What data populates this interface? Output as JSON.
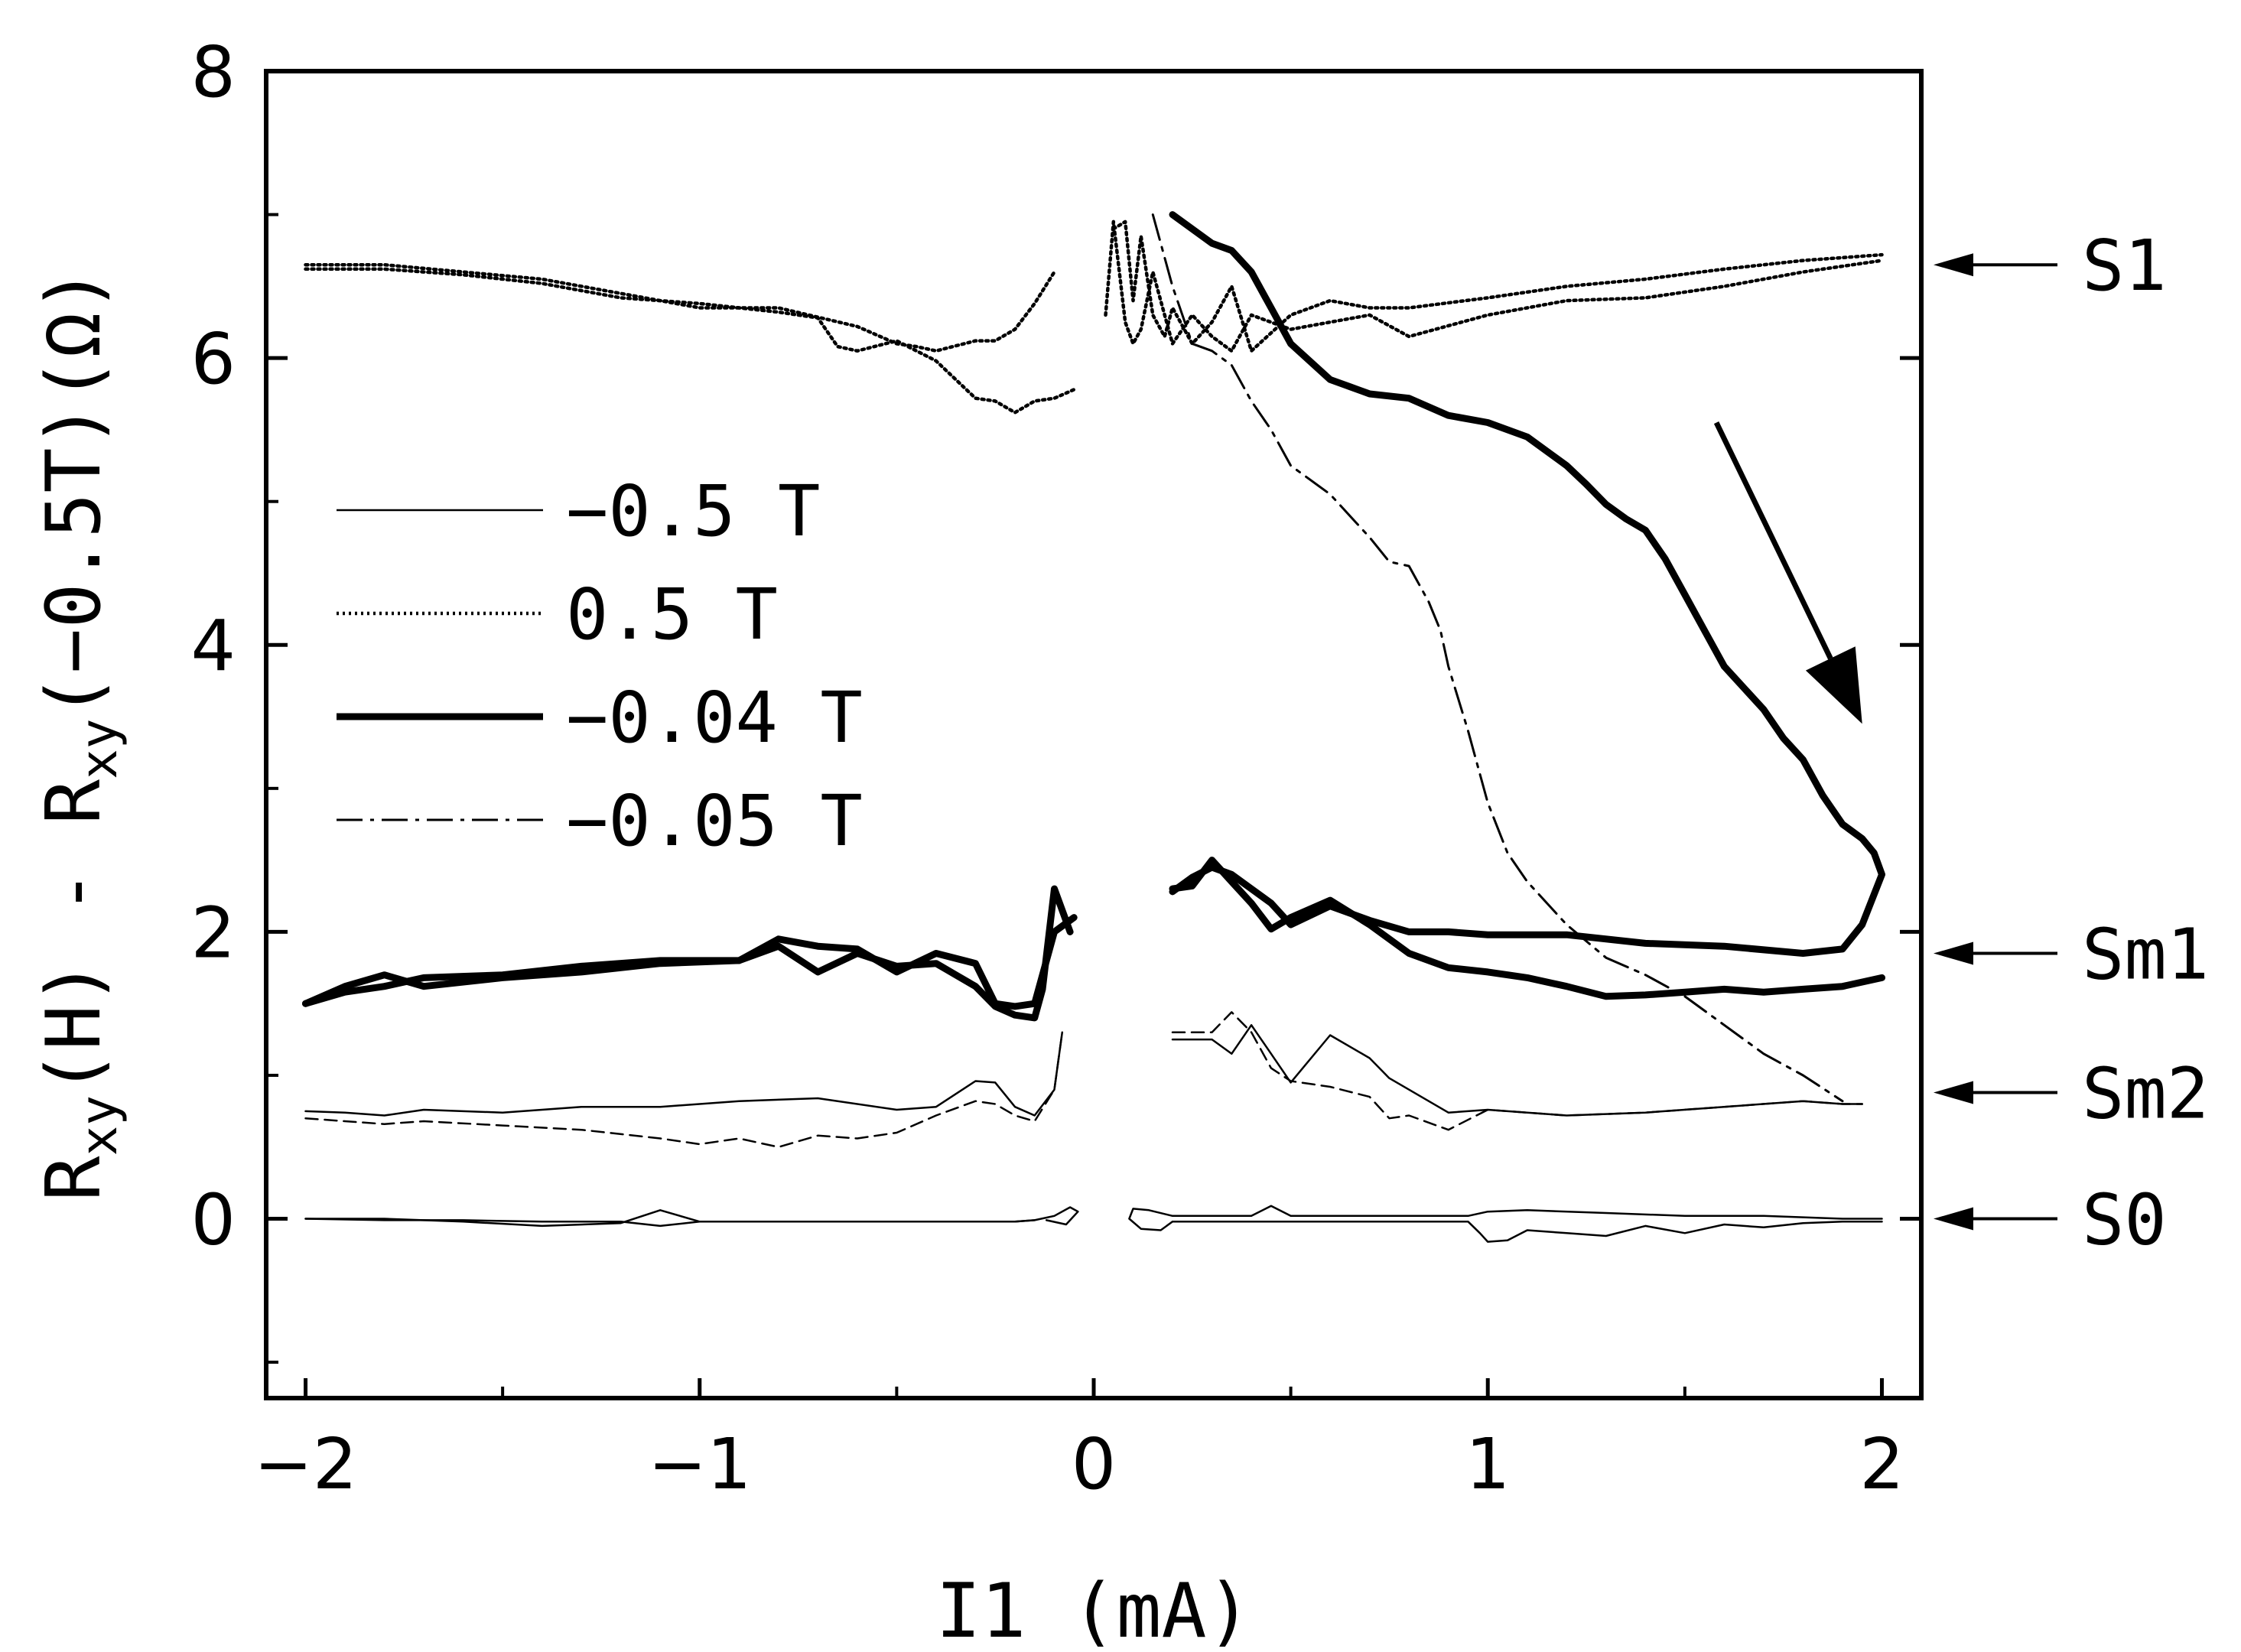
{
  "chart_data": {
    "type": "line",
    "xlabel": "I1 (mA)",
    "ylabel": {
      "main": "R",
      "sub1": "xy",
      "mid": "(H) - R",
      "sub2": "xy",
      "tail": "(−0.5T)(Ω)"
    },
    "xlim": [
      -2.1,
      2.1
    ],
    "ylim": [
      -1.25,
      8
    ],
    "x_ticks": [
      -2,
      -1,
      0,
      1,
      2
    ],
    "x_tick_labels": [
      "−2",
      "−1",
      "0",
      "1",
      "2"
    ],
    "y_ticks": [
      0,
      2,
      4,
      6,
      8
    ],
    "y_tick_labels": [
      "0",
      "2",
      "4",
      "6",
      "8"
    ],
    "grid": false,
    "legend_position": "left-middle",
    "legend": [
      {
        "label": "−0.5 T",
        "style": "thin"
      },
      {
        "label": "0.5 T",
        "style": "dotted"
      },
      {
        "label": "−0.04 T",
        "style": "thick"
      },
      {
        "label": "−0.05 T",
        "style": "dashdot"
      }
    ],
    "state_labels": [
      {
        "label": "S1",
        "y": 6.65
      },
      {
        "label": "Sm1",
        "y": 1.85
      },
      {
        "label": "Sm2",
        "y": 0.88
      },
      {
        "label": "S0",
        "y": 0.0
      }
    ],
    "sweep_arrow": {
      "from": [
        1.58,
        5.55
      ],
      "to": [
        1.95,
        3.45
      ]
    },
    "series": [
      {
        "style": "thin",
        "x": [
          -2,
          -1.8,
          -1.6,
          -1.4,
          -1.2,
          -1.1,
          -1.0,
          -0.8,
          -0.6,
          -0.4,
          -0.2,
          -0.15,
          -0.1,
          -0.06,
          -0.04,
          -0.07,
          -0.12
        ],
        "y": [
          0,
          0,
          -0.02,
          -0.05,
          -0.03,
          0.06,
          -0.02,
          -0.02,
          -0.02,
          -0.02,
          -0.02,
          -0.01,
          0.02,
          0.08,
          0.05,
          -0.04,
          -0.01
        ]
      },
      {
        "style": "thin",
        "x": [
          -2,
          -1.8,
          -1.6,
          -1.4,
          -1.2,
          -1.1,
          -1.0,
          -0.8,
          -0.6,
          -0.4,
          -0.2,
          -0.15
        ],
        "y": [
          0,
          -0.01,
          -0.01,
          -0.02,
          -0.02,
          -0.05,
          -0.02,
          -0.02,
          -0.02,
          -0.02,
          -0.02,
          -0.01
        ]
      },
      {
        "style": "thin",
        "x": [
          0.2,
          0.17,
          0.12,
          0.09,
          0.1,
          0.14,
          0.2,
          0.3,
          0.4,
          0.45,
          0.5,
          0.7,
          0.9,
          0.95,
          1.0,
          1.1,
          1.3,
          1.5,
          1.7,
          1.9,
          2.0
        ],
        "y": [
          -0.02,
          -0.08,
          -0.07,
          0.0,
          0.07,
          0.06,
          0.02,
          0.02,
          0.02,
          0.09,
          0.02,
          0.02,
          0.02,
          0.02,
          0.05,
          0.06,
          0.04,
          0.02,
          0.02,
          0.0,
          0.0
        ]
      },
      {
        "style": "thin",
        "x": [
          0.2,
          0.4,
          0.6,
          0.8,
          0.95,
          0.98,
          1.0,
          1.05,
          1.1,
          1.2,
          1.3,
          1.4,
          1.5,
          1.6,
          1.7,
          1.8,
          1.9,
          2.0
        ],
        "y": [
          -0.02,
          -0.02,
          -0.02,
          -0.02,
          -0.02,
          -0.1,
          -0.16,
          -0.15,
          -0.08,
          -0.1,
          -0.12,
          -0.05,
          -0.1,
          -0.04,
          -0.06,
          -0.03,
          -0.02,
          -0.02
        ]
      },
      {
        "style": "thin",
        "x": [
          -2,
          -1.9,
          -1.8,
          -1.7,
          -1.5,
          -1.3,
          -1.1,
          -0.9,
          -0.7,
          -0.5,
          -0.4,
          -0.3,
          -0.25,
          -0.2,
          -0.15,
          -0.1,
          -0.08
        ],
        "y": [
          0.75,
          0.74,
          0.72,
          0.76,
          0.74,
          0.78,
          0.78,
          0.82,
          0.84,
          0.76,
          0.78,
          0.96,
          0.95,
          0.78,
          0.72,
          0.9,
          1.3
        ]
      },
      {
        "style": "dashed",
        "x": [
          -2,
          -1.9,
          -1.8,
          -1.7,
          -1.5,
          -1.3,
          -1.1,
          -1.0,
          -0.9,
          -0.8,
          -0.7,
          -0.6,
          -0.5,
          -0.4,
          -0.3,
          -0.25,
          -0.2,
          -0.15,
          -0.1,
          -0.08
        ],
        "y": [
          0.7,
          0.68,
          0.66,
          0.68,
          0.65,
          0.62,
          0.56,
          0.52,
          0.56,
          0.5,
          0.58,
          0.56,
          0.6,
          0.72,
          0.82,
          0.8,
          0.72,
          0.68,
          0.9,
          1.3
        ]
      },
      {
        "style": "thin",
        "x": [
          0.2,
          0.3,
          0.35,
          0.4,
          0.45,
          0.5,
          0.6,
          0.7,
          0.75,
          0.8,
          0.9,
          1.0,
          1.2,
          1.4,
          1.6,
          1.8,
          1.9,
          1.95
        ],
        "y": [
          1.25,
          1.25,
          1.15,
          1.35,
          1.15,
          0.95,
          1.28,
          1.12,
          0.98,
          0.9,
          0.74,
          0.76,
          0.72,
          0.74,
          0.78,
          0.82,
          0.8,
          0.8
        ]
      },
      {
        "style": "dashed",
        "x": [
          0.2,
          0.3,
          0.35,
          0.4,
          0.45,
          0.5,
          0.6,
          0.7,
          0.75,
          0.8,
          0.9,
          1.0,
          1.2,
          1.4,
          1.6,
          1.8,
          1.9,
          1.95
        ],
        "y": [
          1.3,
          1.3,
          1.44,
          1.3,
          1.05,
          0.96,
          0.92,
          0.85,
          0.7,
          0.72,
          0.62,
          0.76,
          0.72,
          0.74,
          0.78,
          0.82,
          0.8,
          0.8
        ]
      },
      {
        "style": "dotted",
        "x": [
          -2,
          -1.8,
          -1.6,
          -1.4,
          -1.2,
          -1.0,
          -0.8,
          -0.6,
          -0.5,
          -0.45,
          -0.4,
          -0.3,
          -0.25,
          -0.2,
          -0.15,
          -0.1
        ],
        "y": [
          6.65,
          6.65,
          6.6,
          6.55,
          6.45,
          6.35,
          6.35,
          6.22,
          6.1,
          6.08,
          6.05,
          6.12,
          6.12,
          6.2,
          6.38,
          6.6
        ]
      },
      {
        "style": "dotted",
        "x": [
          -2,
          -1.8,
          -1.6,
          -1.4,
          -1.2,
          -1.0,
          -0.8,
          -0.7,
          -0.65,
          -0.6,
          -0.5,
          -0.4,
          -0.3,
          -0.25,
          -0.2,
          -0.15,
          -0.1,
          -0.05
        ],
        "y": [
          6.62,
          6.62,
          6.58,
          6.52,
          6.42,
          6.38,
          6.32,
          6.28,
          6.08,
          6.05,
          6.12,
          5.98,
          5.72,
          5.7,
          5.62,
          5.7,
          5.72,
          5.78
        ]
      },
      {
        "style": "dotted",
        "x": [
          0.03,
          0.05,
          0.08,
          0.1,
          0.12,
          0.15,
          0.2,
          0.25,
          0.3,
          0.35,
          0.4,
          0.5,
          0.6,
          0.7,
          0.8,
          1.0,
          1.2,
          1.4,
          1.6,
          1.8,
          2.0
        ],
        "y": [
          6.3,
          6.95,
          6.25,
          6.1,
          6.2,
          6.6,
          6.1,
          6.3,
          6.15,
          6.05,
          6.3,
          6.2,
          6.25,
          6.3,
          6.15,
          6.3,
          6.4,
          6.42,
          6.5,
          6.6,
          6.68
        ]
      },
      {
        "style": "dotted",
        "x": [
          0.05,
          0.08,
          0.1,
          0.12,
          0.15,
          0.18,
          0.2,
          0.25,
          0.3,
          0.35,
          0.4,
          0.5,
          0.6,
          0.7,
          0.8,
          1.0,
          1.2,
          1.4,
          1.6,
          1.8,
          2.0
        ],
        "y": [
          6.9,
          6.95,
          6.4,
          6.85,
          6.3,
          6.15,
          6.35,
          6.1,
          6.25,
          6.5,
          6.05,
          6.3,
          6.4,
          6.35,
          6.35,
          6.42,
          6.5,
          6.55,
          6.62,
          6.68,
          6.72
        ]
      },
      {
        "style": "thick",
        "x": [
          -2,
          -1.9,
          -1.8,
          -1.7,
          -1.5,
          -1.3,
          -1.1,
          -0.9,
          -0.8,
          -0.7,
          -0.6,
          -0.5,
          -0.4,
          -0.3,
          -0.25,
          -0.2,
          -0.15,
          -0.12,
          -0.1,
          -0.05
        ],
        "y": [
          1.5,
          1.62,
          1.7,
          1.62,
          1.68,
          1.72,
          1.78,
          1.8,
          1.95,
          1.9,
          1.88,
          1.72,
          1.85,
          1.78,
          1.5,
          1.48,
          1.5,
          1.8,
          2.0,
          2.1
        ]
      },
      {
        "style": "thick",
        "x": [
          -2,
          -1.9,
          -1.8,
          -1.7,
          -1.5,
          -1.3,
          -1.1,
          -0.9,
          -0.8,
          -0.7,
          -0.6,
          -0.5,
          -0.4,
          -0.3,
          -0.25,
          -0.2,
          -0.15,
          -0.13,
          -0.1,
          -0.06
        ],
        "y": [
          1.5,
          1.58,
          1.62,
          1.68,
          1.7,
          1.76,
          1.8,
          1.8,
          1.9,
          1.72,
          1.85,
          1.76,
          1.78,
          1.62,
          1.48,
          1.42,
          1.4,
          1.6,
          2.3,
          2.0
        ]
      },
      {
        "style": "thick",
        "x": [
          0.2,
          0.25,
          0.3,
          0.35,
          0.4,
          0.45,
          0.5,
          0.6,
          0.7,
          0.8,
          0.9,
          1.0,
          1.2,
          1.4,
          1.6,
          1.8,
          1.9,
          1.95,
          2.0,
          1.98,
          1.95,
          1.9,
          1.85,
          1.8,
          1.75,
          1.7,
          1.65,
          1.6,
          1.55,
          1.5,
          1.45,
          1.4,
          1.35,
          1.3,
          1.25,
          1.2,
          1.1,
          1.0,
          0.9,
          0.8,
          0.7,
          0.65,
          0.6,
          0.5,
          0.45,
          0.4,
          0.35,
          0.3,
          0.2
        ],
        "y": [
          2.28,
          2.38,
          2.45,
          2.4,
          2.3,
          2.2,
          2.05,
          2.18,
          2.08,
          2.0,
          2.0,
          1.98,
          1.98,
          1.92,
          1.9,
          1.85,
          1.88,
          2.05,
          2.4,
          2.55,
          2.65,
          2.75,
          2.95,
          3.2,
          3.35,
          3.55,
          3.7,
          3.85,
          4.1,
          4.35,
          4.6,
          4.8,
          4.88,
          4.98,
          5.12,
          5.25,
          5.45,
          5.55,
          5.6,
          5.72,
          5.75,
          5.8,
          5.85,
          6.1,
          6.35,
          6.6,
          6.75,
          6.8,
          7.0
        ]
      },
      {
        "style": "thick",
        "x": [
          0.2,
          0.25,
          0.3,
          0.35,
          0.4,
          0.45,
          0.5,
          0.6,
          0.7,
          0.8,
          0.9,
          1.0,
          1.1,
          1.2,
          1.3,
          1.4,
          1.5,
          1.6,
          1.7,
          1.8,
          1.9,
          2.0
        ],
        "y": [
          2.3,
          2.32,
          2.5,
          2.35,
          2.2,
          2.02,
          2.1,
          2.22,
          2.05,
          1.85,
          1.75,
          1.72,
          1.68,
          1.62,
          1.55,
          1.56,
          1.58,
          1.6,
          1.58,
          1.6,
          1.62,
          1.68
        ]
      },
      {
        "style": "dashdot",
        "x": [
          0.15,
          0.2,
          0.25,
          0.3,
          0.35,
          0.4,
          0.45,
          0.5,
          0.55,
          0.6,
          0.65,
          0.7,
          0.75,
          0.8,
          0.85,
          0.88,
          0.9,
          0.95,
          1.0,
          1.05,
          1.1,
          1.2,
          1.3,
          1.4,
          1.5,
          1.6,
          1.7,
          1.8,
          1.9
        ],
        "y": [
          7.0,
          6.5,
          6.1,
          6.05,
          5.95,
          5.7,
          5.5,
          5.25,
          5.15,
          5.05,
          4.9,
          4.75,
          4.58,
          4.55,
          4.3,
          4.1,
          3.85,
          3.4,
          2.9,
          2.55,
          2.35,
          2.05,
          1.82,
          1.7,
          1.55,
          1.35,
          1.15,
          1.0,
          0.82
        ]
      }
    ]
  }
}
